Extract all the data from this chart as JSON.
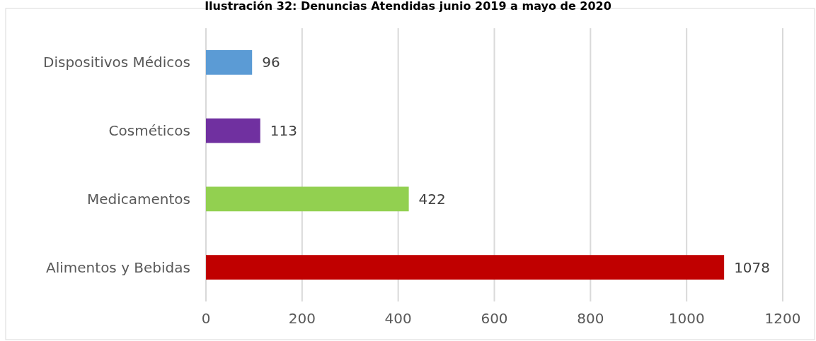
{
  "chart_data": {
    "type": "bar",
    "orientation": "horizontal",
    "title": "Ilustración 32: Denuncias Atendidas junio 2019 a mayo de 2020",
    "categories": [
      "Dispositivos Médicos",
      "Cosméticos",
      "Medicamentos",
      "Alimentos y Bebidas"
    ],
    "values": [
      96,
      113,
      422,
      1078
    ],
    "colors": [
      "#5b9bd5",
      "#7030a0",
      "#92d050",
      "#c00000"
    ],
    "xlim": [
      0,
      1200
    ],
    "xticks": [
      0,
      200,
      400,
      600,
      800,
      1000,
      1200
    ],
    "grid": "x",
    "data_labels": true
  }
}
